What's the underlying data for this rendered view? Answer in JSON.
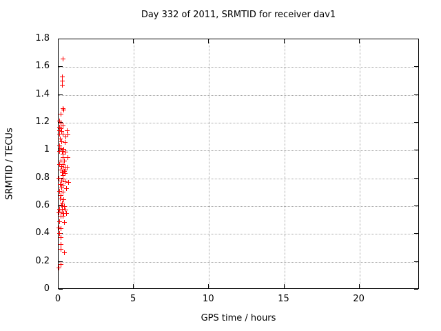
{
  "colors": {
    "marker": "#ff0000",
    "grid": "#a6a6a6",
    "frame": "#000000",
    "background": "#ffffff"
  },
  "chart_data": {
    "type": "scatter",
    "title": "Day 332 of 2011, SRMTID for receiver dav1",
    "xlabel": "GPS time / hours",
    "ylabel": "SRMTID / TECUs",
    "xlim": [
      0,
      24
    ],
    "ylim": [
      0,
      1.8
    ],
    "xticks": [
      0,
      5,
      10,
      15,
      20
    ],
    "xtick_labels": [
      "0",
      "5",
      "10",
      "15",
      "20"
    ],
    "yticks": [
      0,
      0.2,
      0.4,
      0.6,
      0.8,
      1.0,
      1.2,
      1.4,
      1.6,
      1.8
    ],
    "ytick_labels": [
      "0",
      "0.2",
      "0.4",
      "0.6",
      "0.8",
      "1",
      "1.2",
      "1.4",
      "1.6",
      "1.8"
    ],
    "grid": true,
    "legend": "none",
    "marker_style": "plus",
    "series": [
      {
        "name": "SRMTID",
        "color": "#ff0000",
        "points": [
          [
            0.28,
            1.66
          ],
          [
            0.23,
            1.53
          ],
          [
            0.26,
            1.5
          ],
          [
            0.23,
            1.47
          ],
          [
            0.3,
            1.3
          ],
          [
            0.36,
            1.29
          ],
          [
            0.14,
            1.26
          ],
          [
            0.05,
            1.21
          ],
          [
            0.15,
            1.2
          ],
          [
            0.28,
            1.18
          ],
          [
            0.06,
            1.17
          ],
          [
            0.18,
            1.16
          ],
          [
            0.05,
            1.145
          ],
          [
            0.22,
            1.14
          ],
          [
            0.55,
            1.145
          ],
          [
            0.07,
            1.12
          ],
          [
            0.32,
            1.12
          ],
          [
            0.6,
            1.115
          ],
          [
            0.5,
            1.1
          ],
          [
            0.1,
            1.085
          ],
          [
            0.22,
            1.065
          ],
          [
            0.45,
            1.06
          ],
          [
            0.05,
            1.035
          ],
          [
            0.15,
            1.015
          ],
          [
            0.33,
            1.01
          ],
          [
            0.05,
            0.995
          ],
          [
            0.24,
            0.993
          ],
          [
            0.5,
            0.99
          ],
          [
            0.28,
            0.972
          ],
          [
            0.3,
            0.952
          ],
          [
            0.6,
            0.948
          ],
          [
            0.18,
            0.925
          ],
          [
            0.38,
            0.923
          ],
          [
            0.05,
            0.9
          ],
          [
            0.28,
            0.898
          ],
          [
            0.2,
            0.885
          ],
          [
            0.42,
            0.88
          ],
          [
            0.56,
            0.878
          ],
          [
            0.15,
            0.862
          ],
          [
            0.3,
            0.86
          ],
          [
            0.44,
            0.858
          ],
          [
            0.37,
            0.852
          ],
          [
            0.25,
            0.84
          ],
          [
            0.42,
            0.838
          ],
          [
            0.3,
            0.823
          ],
          [
            0.02,
            0.8
          ],
          [
            0.28,
            0.797
          ],
          [
            0.2,
            0.78
          ],
          [
            0.43,
            0.777
          ],
          [
            0.65,
            0.773
          ],
          [
            0.1,
            0.755
          ],
          [
            0.3,
            0.75
          ],
          [
            0.2,
            0.73
          ],
          [
            0.52,
            0.728
          ],
          [
            0.05,
            0.705
          ],
          [
            0.28,
            0.7
          ],
          [
            0.18,
            0.675
          ],
          [
            0.1,
            0.652
          ],
          [
            0.36,
            0.648
          ],
          [
            0.27,
            0.62
          ],
          [
            0.2,
            0.605
          ],
          [
            0.38,
            0.6
          ],
          [
            0.07,
            0.58
          ],
          [
            0.27,
            0.578
          ],
          [
            0.47,
            0.575
          ],
          [
            0.02,
            0.555
          ],
          [
            0.17,
            0.553
          ],
          [
            0.35,
            0.55
          ],
          [
            0.52,
            0.548
          ],
          [
            0.14,
            0.53
          ],
          [
            0.3,
            0.527
          ],
          [
            0.05,
            0.487
          ],
          [
            0.4,
            0.485
          ],
          [
            0.02,
            0.443
          ],
          [
            0.18,
            0.44
          ],
          [
            0.06,
            0.405
          ],
          [
            0.14,
            0.372
          ],
          [
            0.14,
            0.327
          ],
          [
            0.14,
            0.288
          ],
          [
            0.41,
            0.263
          ],
          [
            0.18,
            0.183
          ],
          [
            0.02,
            0.154
          ]
        ]
      }
    ]
  }
}
